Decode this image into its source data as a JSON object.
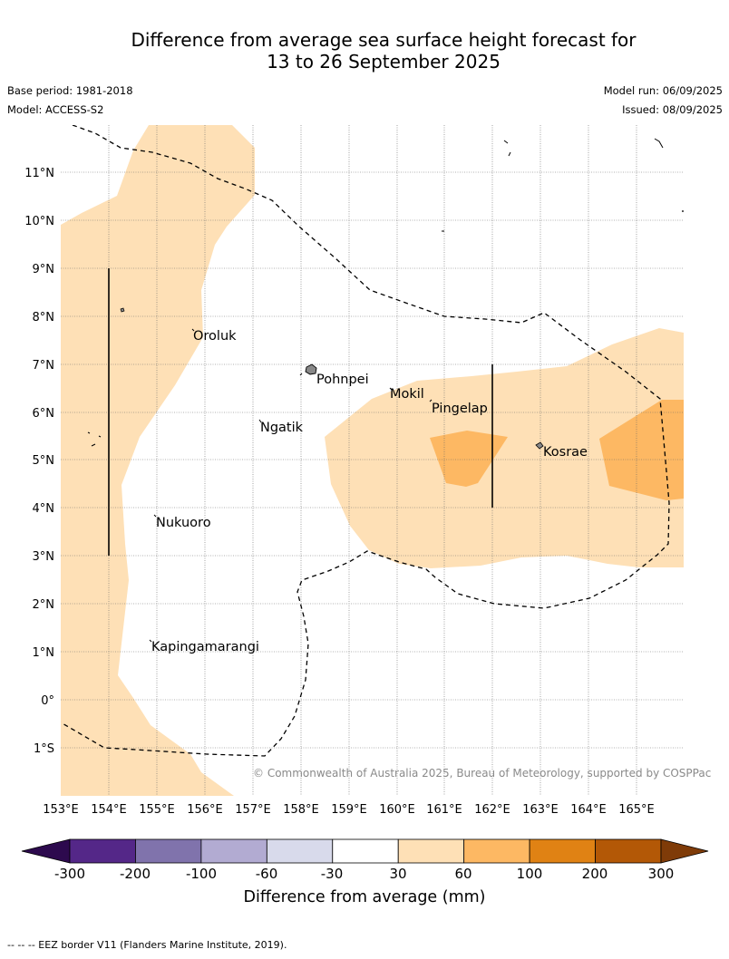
{
  "header": {
    "title_line1": "Difference from average sea surface height forecast for",
    "title_line2": "13 to 26 September 2025",
    "base_period": "Base period: 1981-2018",
    "model": "Model: ACCESS-S2",
    "model_run": "Model run: 06/09/2025",
    "issued": "Issued: 08/09/2025"
  },
  "map": {
    "lon_labels": [
      "153°E",
      "154°E",
      "155°E",
      "156°E",
      "157°E",
      "158°E",
      "159°E",
      "160°E",
      "161°E",
      "162°E",
      "163°E",
      "164°E",
      "165°E"
    ],
    "lat_labels": [
      "11°N",
      "10°N",
      "9°N",
      "8°N",
      "7°N",
      "6°N",
      "5°N",
      "4°N",
      "3°N",
      "2°N",
      "1°N",
      "0°",
      "1°S"
    ],
    "places": [
      "Oroluk",
      "Pohnpei",
      "Mokil",
      "Pingelap",
      "Ngatik",
      "Kosrae",
      "Nukuoro",
      "Kapingamarangi"
    ],
    "copyright": "© Commonwealth of Australia 2025, Bureau of Meteorology, supported by COSPPac"
  },
  "colorbar": {
    "ticks": [
      "-300",
      "-200",
      "-100",
      "-60",
      "-30",
      "30",
      "60",
      "100",
      "200",
      "300"
    ],
    "label": "Difference from average (mm)",
    "colors": {
      "below": "#2d0a4e",
      "bins": [
        "#542788",
        "#8073ac",
        "#b2abd2",
        "#d8daeb",
        "#ffffff",
        "#fee0b6",
        "#fdb863",
        "#e08214",
        "#b35806"
      ],
      "above": "#7f3b08"
    }
  },
  "footnote": "-- -- -- EEZ border V11 (Flanders Marine Institute, 2019)."
}
